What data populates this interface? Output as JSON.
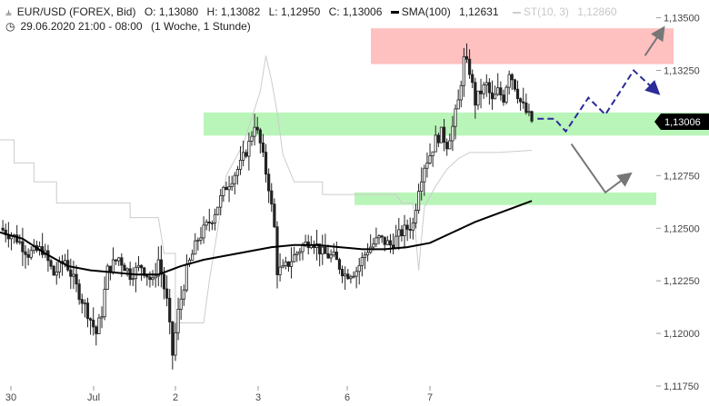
{
  "header": {
    "symbol": "EUR/USD (FOREX, Bid)",
    "open": "O: 1,13080",
    "high": "H: 1,13082",
    "low": "L: 1,12950",
    "close": "C: 1,13006",
    "sma_label": "SMA(100)",
    "sma_value": "1,12631",
    "st_label": "ST(10, 3)",
    "st_value": "1,12860",
    "date_range": "29.06.2020 21:00 - 08:00",
    "period": "(1 Woche, 1 Stunde)"
  },
  "colors": {
    "candles": "#222222",
    "sma": "#000000",
    "supertrend": "#cccccc",
    "resistance_zone": "#ffc0c0",
    "support_zone": "#b9f5b9",
    "scenario_bull": "#2b2b9a",
    "scenario_bear": "#777777",
    "price_tag": "#000000"
  },
  "chart_data": {
    "type": "candlestick",
    "ylim": [
      1.1175,
      1.1355
    ],
    "y_ticks": [
      "1,13500",
      "1,13250",
      "1,13000",
      "1,12750",
      "1,12500",
      "1,12250",
      "1,12000",
      "1,11750"
    ],
    "x_ticks": [
      "30",
      "Jul",
      "2",
      "3",
      "6",
      "7"
    ],
    "current_price": "1,13006",
    "zones": [
      {
        "type": "resistance",
        "from": 1.1328,
        "to": 1.1345
      },
      {
        "type": "support",
        "from": 1.1294,
        "to": 1.1305
      },
      {
        "type": "support",
        "from": 1.1261,
        "to": 1.1267
      }
    ],
    "close_path": [
      [
        0,
        1.125
      ],
      [
        6,
        1.1245
      ],
      [
        10,
        1.1238
      ],
      [
        15,
        1.124
      ],
      [
        19,
        1.1228
      ],
      [
        23,
        1.1235
      ],
      [
        27,
        1.1222
      ],
      [
        31,
        1.121
      ],
      [
        34,
        1.12
      ],
      [
        36,
        1.121
      ],
      [
        38,
        1.123
      ],
      [
        42,
        1.1236
      ],
      [
        46,
        1.1228
      ],
      [
        50,
        1.1232
      ],
      [
        54,
        1.1224
      ],
      [
        56,
        1.1235
      ],
      [
        59,
        1.1215
      ],
      [
        61,
        1.119
      ],
      [
        63,
        1.121
      ],
      [
        66,
        1.123
      ],
      [
        70,
        1.1245
      ],
      [
        75,
        1.1255
      ],
      [
        80,
        1.127
      ],
      [
        85,
        1.128
      ],
      [
        88,
        1.129
      ],
      [
        90,
        1.13
      ],
      [
        92,
        1.129
      ],
      [
        95,
        1.127
      ],
      [
        97,
        1.125
      ],
      [
        98,
        1.123
      ],
      [
        100,
        1.123
      ],
      [
        103,
        1.1235
      ],
      [
        106,
        1.124
      ],
      [
        110,
        1.1245
      ],
      [
        114,
        1.1238
      ],
      [
        118,
        1.1236
      ],
      [
        122,
        1.1228
      ],
      [
        126,
        1.123
      ],
      [
        130,
        1.124
      ],
      [
        134,
        1.1245
      ],
      [
        138,
        1.1242
      ],
      [
        142,
        1.1248
      ],
      [
        146,
        1.1252
      ],
      [
        148,
        1.127
      ],
      [
        150,
        1.128
      ],
      [
        152,
        1.1285
      ],
      [
        154,
        1.1292
      ],
      [
        156,
        1.1295
      ],
      [
        158,
        1.129
      ],
      [
        160,
        1.1298
      ],
      [
        162,
        1.131
      ],
      [
        164,
        1.133
      ],
      [
        166,
        1.1325
      ],
      [
        168,
        1.131
      ],
      [
        170,
        1.1315
      ],
      [
        172,
        1.1318
      ],
      [
        174,
        1.131
      ],
      [
        176,
        1.1315
      ],
      [
        178,
        1.1312
      ],
      [
        180,
        1.1325
      ],
      [
        182,
        1.1318
      ],
      [
        184,
        1.131
      ],
      [
        186,
        1.1305
      ],
      [
        188,
        1.1301
      ]
    ],
    "sma_path": [
      [
        0,
        1.1248
      ],
      [
        8,
        1.1245
      ],
      [
        16,
        1.1238
      ],
      [
        24,
        1.1232
      ],
      [
        32,
        1.123
      ],
      [
        40,
        1.1229
      ],
      [
        48,
        1.1228
      ],
      [
        56,
        1.1228
      ],
      [
        64,
        1.1232
      ],
      [
        72,
        1.1235
      ],
      [
        80,
        1.1237
      ],
      [
        88,
        1.1239
      ],
      [
        96,
        1.1241
      ],
      [
        104,
        1.1242
      ],
      [
        112,
        1.1242
      ],
      [
        120,
        1.1241
      ],
      [
        128,
        1.124
      ],
      [
        136,
        1.124
      ],
      [
        144,
        1.1241
      ],
      [
        152,
        1.1243
      ],
      [
        160,
        1.1248
      ],
      [
        168,
        1.1253
      ],
      [
        176,
        1.1257
      ],
      [
        184,
        1.1261
      ],
      [
        188,
        1.1263
      ]
    ],
    "supertrend_path": [
      [
        0,
        1.1292
      ],
      [
        5,
        1.1292
      ],
      [
        5,
        1.1281
      ],
      [
        12,
        1.1281
      ],
      [
        12,
        1.1272
      ],
      [
        20,
        1.1272
      ],
      [
        20,
        1.1262
      ],
      [
        46,
        1.1262
      ],
      [
        46,
        1.1255
      ],
      [
        56,
        1.1255
      ],
      [
        58,
        1.1238
      ],
      [
        62,
        1.1238
      ],
      [
        62,
        1.1205
      ],
      [
        72,
        1.1205
      ],
      [
        74,
        1.1225
      ],
      [
        80,
        1.1275
      ],
      [
        86,
        1.129
      ],
      [
        92,
        1.1315
      ],
      [
        94,
        1.1332
      ],
      [
        96,
        1.132
      ],
      [
        98,
        1.1305
      ],
      [
        100,
        1.1285
      ],
      [
        104,
        1.1272
      ],
      [
        114,
        1.1272
      ],
      [
        114,
        1.1266
      ],
      [
        140,
        1.1266
      ],
      [
        142,
        1.1262
      ],
      [
        146,
        1.1262
      ],
      [
        148,
        1.123
      ],
      [
        150,
        1.126
      ],
      [
        154,
        1.127
      ],
      [
        158,
        1.1278
      ],
      [
        162,
        1.1283
      ],
      [
        166,
        1.1286
      ],
      [
        176,
        1.1286
      ],
      [
        188,
        1.1287
      ]
    ],
    "scenarios": [
      {
        "name": "bull",
        "dashed": true,
        "points": [
          [
            190,
            1.1302
          ],
          [
            196,
            1.1302
          ],
          [
            200,
            1.1296
          ],
          [
            208,
            1.1312
          ],
          [
            214,
            1.1304
          ],
          [
            224,
            1.1325
          ],
          [
            232,
            1.1315
          ]
        ]
      },
      {
        "name": "bear",
        "dashed": false,
        "points": [
          [
            202,
            1.129
          ],
          [
            214,
            1.1267
          ],
          [
            222,
            1.1275
          ]
        ]
      },
      {
        "name": "bull_up",
        "dashed": false,
        "points": [
          [
            228,
            1.1332
          ],
          [
            234,
            1.1344
          ]
        ]
      }
    ]
  }
}
